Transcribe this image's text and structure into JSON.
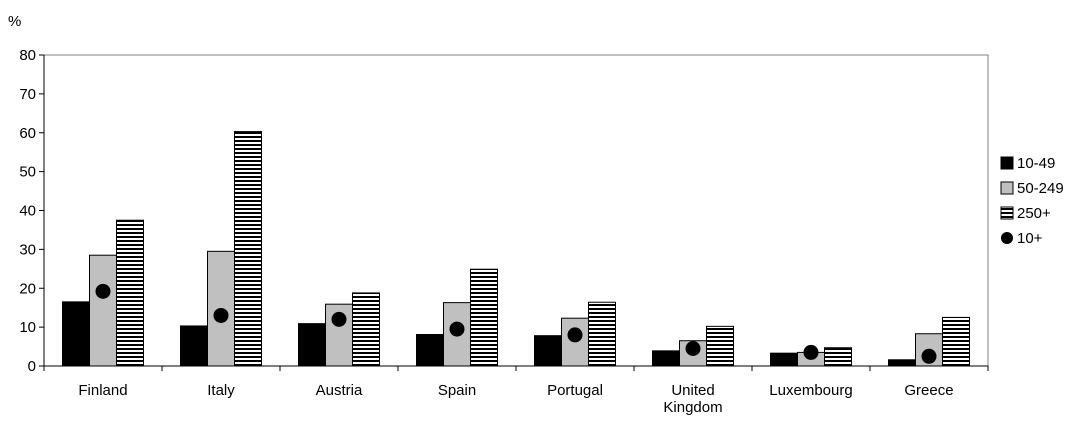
{
  "chart_data": {
    "type": "bar",
    "title": "",
    "ylabel": "%",
    "xlabel": "",
    "ylim": [
      0,
      80
    ],
    "yticks": [
      "0",
      "10",
      "20",
      "30",
      "40",
      "50",
      "60",
      "70",
      "80"
    ],
    "categories": [
      [
        "Finland"
      ],
      [
        "Italy"
      ],
      [
        "Austria"
      ],
      [
        "Spain"
      ],
      [
        "Portugal"
      ],
      [
        "United",
        "Kingdom"
      ],
      [
        "Luxembourg"
      ],
      [
        "Greece"
      ]
    ],
    "series": [
      {
        "name": "10-49",
        "kind": "bar",
        "pattern": "solid",
        "color": "#000000",
        "values": [
          16.5,
          10.3,
          10.9,
          8.1,
          7.8,
          3.9,
          3.3,
          1.6
        ]
      },
      {
        "name": "50-249",
        "kind": "bar",
        "pattern": "grey",
        "color": "#c0c0c0",
        "values": [
          28.5,
          29.5,
          15.9,
          16.3,
          12.3,
          6.5,
          3.5,
          8.3
        ]
      },
      {
        "name": "250+",
        "kind": "bar",
        "pattern": "horizontal-stripes",
        "color": "#000000",
        "values": [
          37.5,
          60.3,
          18.8,
          24.9,
          16.4,
          10.2,
          4.7,
          12.5
        ]
      },
      {
        "name": "10+",
        "kind": "marker",
        "pattern": "dot",
        "color": "#000000",
        "values": [
          19.2,
          13.0,
          12.0,
          9.5,
          8.0,
          4.5,
          3.5,
          2.5
        ]
      }
    ],
    "legend": "right",
    "grid": false
  }
}
